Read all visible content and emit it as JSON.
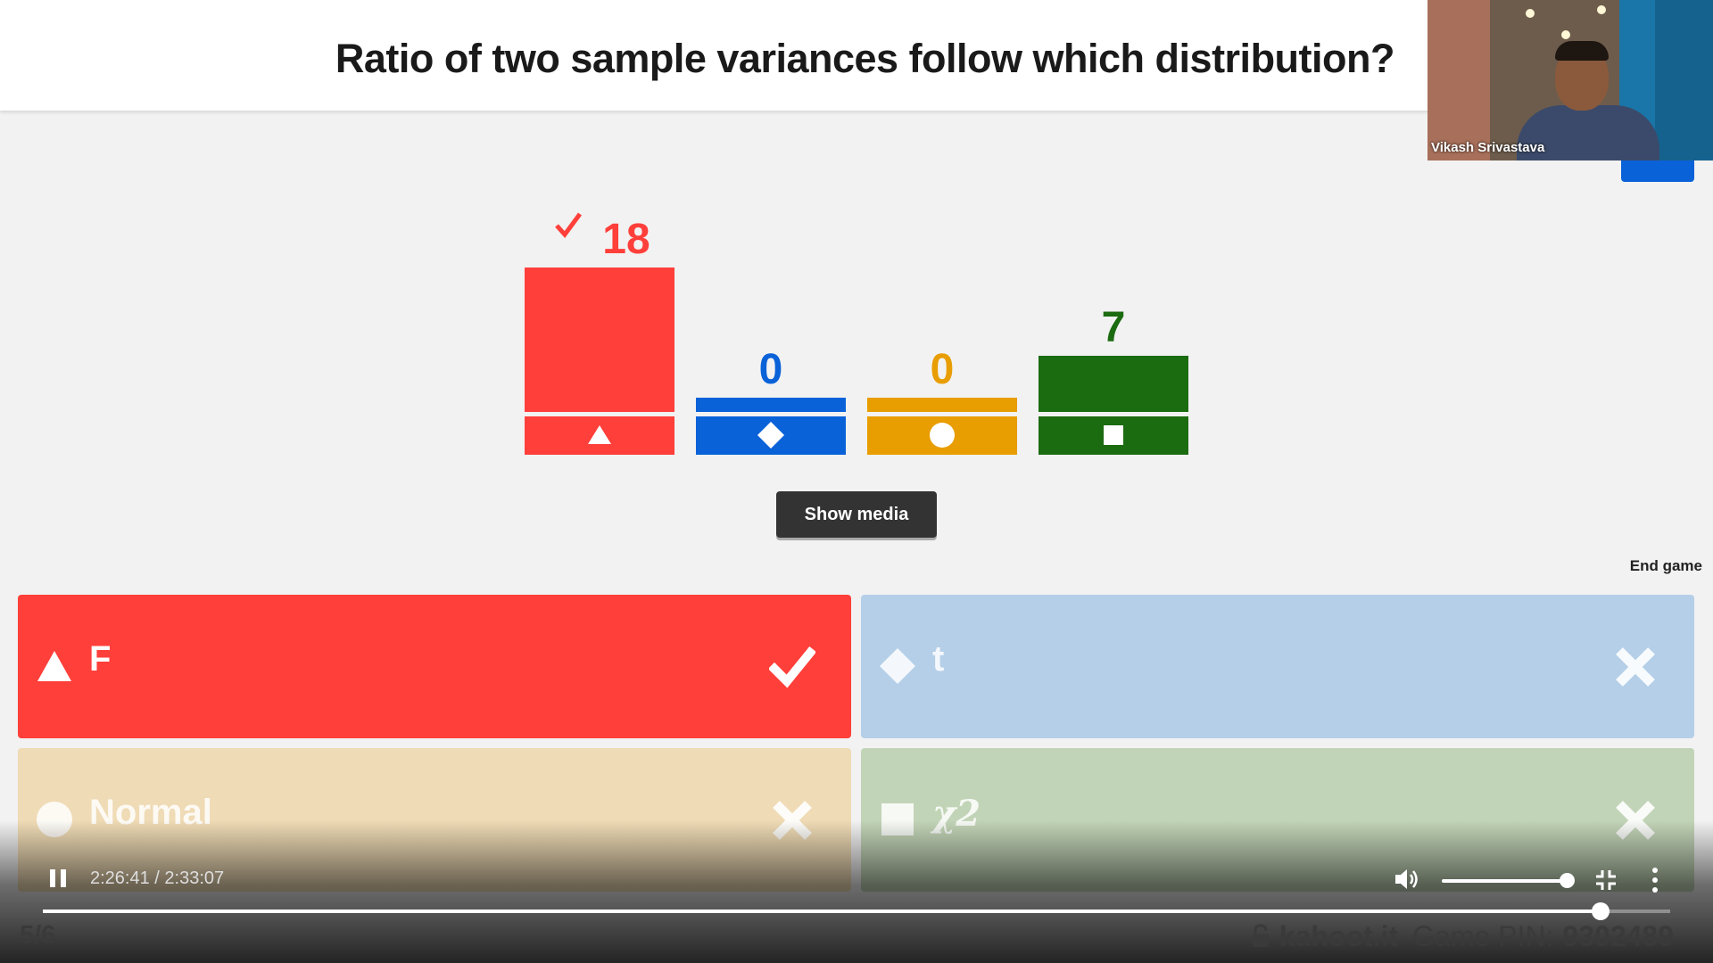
{
  "question": {
    "title": "Ratio of two sample variances follow which distribution?"
  },
  "webcam": {
    "name": "Vikash Srivastava"
  },
  "chart_data": {
    "type": "bar",
    "categories": [
      "F",
      "t",
      "Normal",
      "χ2"
    ],
    "values": [
      18,
      0,
      0,
      7
    ],
    "shapes": [
      "triangle",
      "diamond",
      "circle",
      "square"
    ],
    "colors": [
      "#ff3f3a",
      "#0a62d8",
      "#e89d00",
      "#1b6b10"
    ],
    "correct": [
      true,
      false,
      false,
      false
    ],
    "title": "",
    "xlabel": "",
    "ylabel": ""
  },
  "buttons": {
    "show_media": "Show media",
    "end_game": "End game"
  },
  "answers": [
    {
      "text": "F",
      "shape": "triangle",
      "correct": true
    },
    {
      "text": "t",
      "shape": "diamond",
      "correct": false
    },
    {
      "text": "Normal",
      "shape": "circle",
      "correct": false
    },
    {
      "text": "χ2",
      "shape": "square",
      "correct": false
    }
  ],
  "video": {
    "time": "2:26:41 / 2:33:07",
    "progress": 0.957,
    "volume": 1.0
  },
  "footer": {
    "count": "5/6",
    "brand": "kahoot.it",
    "pin_label": "Game PIN:",
    "pin": "9302489"
  }
}
